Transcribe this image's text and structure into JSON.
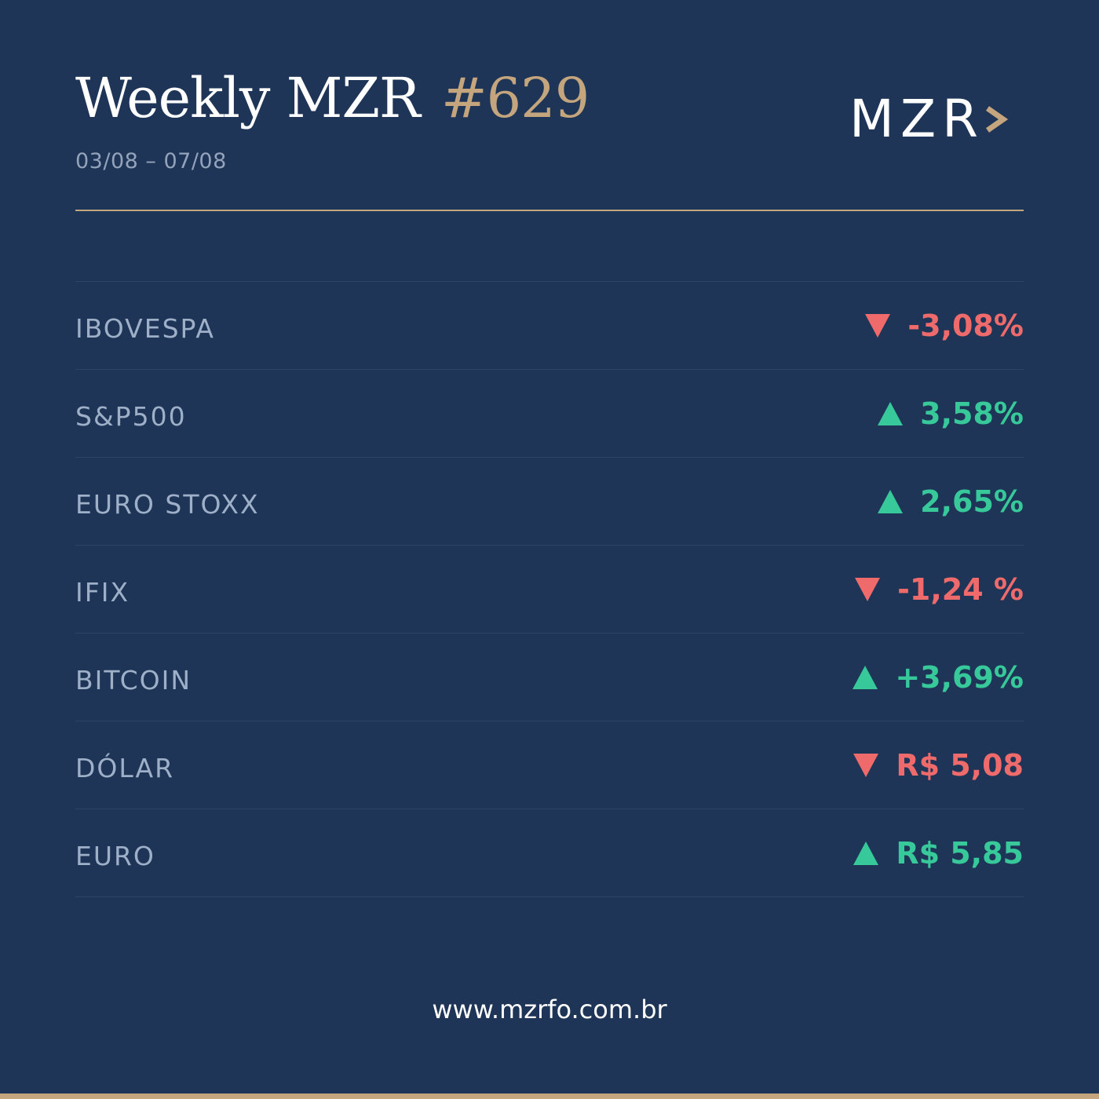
{
  "header": {
    "title": "Weekly MZR",
    "issue": "#629",
    "date_range": "03/08 – 07/08",
    "logo_text": "MZR",
    "logo_icon": "chevron-right-icon"
  },
  "colors": {
    "background": "#1e3557",
    "accent_gold": "#c4a57d",
    "up": "#37c99a",
    "down": "#ef6b6b",
    "label": "#9eb0c8"
  },
  "rows": [
    {
      "label": "IBOVESPA",
      "value": "-3,08%",
      "direction": "down"
    },
    {
      "label": "S&P500",
      "value": "3,58%",
      "direction": "up"
    },
    {
      "label": "EURO STOXX",
      "value": "2,65%",
      "direction": "up"
    },
    {
      "label": "IFIX",
      "value": "-1,24 %",
      "direction": "down"
    },
    {
      "label": "BITCOIN",
      "value": "+3,69%",
      "direction": "up"
    },
    {
      "label": "DÓLAR",
      "value": "R$ 5,08",
      "direction": "down"
    },
    {
      "label": "EURO",
      "value": "R$ 5,85",
      "direction": "up"
    }
  ],
  "footer": {
    "url": "www.mzrfo.com.br"
  }
}
